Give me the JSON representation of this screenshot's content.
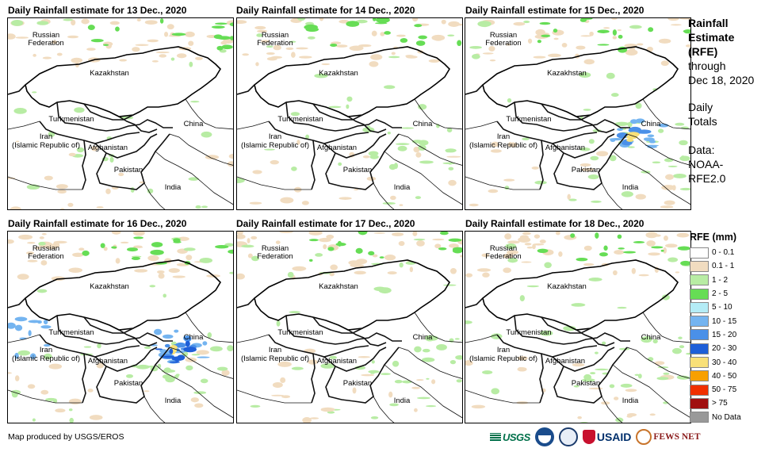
{
  "panels": [
    {
      "title": "Daily Rainfall estimate for 13 Dec., 2020",
      "rain_level": 0
    },
    {
      "title": "Daily Rainfall estimate for 14 Dec., 2020",
      "rain_level": 1
    },
    {
      "title": "Daily Rainfall estimate for 15 Dec., 2020",
      "rain_level": 2
    },
    {
      "title": "Daily Rainfall estimate for 16 Dec., 2020",
      "rain_level": 3
    },
    {
      "title": "Daily Rainfall estimate for 17 Dec., 2020",
      "rain_level": 1
    },
    {
      "title": "Daily Rainfall estimate for 18 Dec., 2020",
      "rain_level": 1
    }
  ],
  "map_labels": {
    "russia_1": "Russian",
    "russia_2": "Federation",
    "kazakhstan": "Kazakhstan",
    "turkmenistan": "Turkmenistan",
    "china": "China",
    "iran_1": "Iran",
    "iran_2": "(Islamic Republic of)",
    "afghanistan": "Afghanistan",
    "pakistan": "Pakistan",
    "india": "India"
  },
  "side_info": {
    "title_1": "Rainfall",
    "title_2": "Estimate",
    "title_3": "(RFE)",
    "through": "through",
    "date": "Dec 18, 2020",
    "totals_1": "Daily",
    "totals_2": "Totals",
    "data_1": "Data:",
    "data_2": "NOAA-",
    "data_3": "RFE2.0"
  },
  "legend": {
    "title": "RFE (mm)",
    "items": [
      {
        "label": "0 - 0.1",
        "color": "#ffffff"
      },
      {
        "label": "0.1 - 1",
        "color": "#f1dcc0"
      },
      {
        "label": "1 - 2",
        "color": "#b8eca4"
      },
      {
        "label": "2 - 5",
        "color": "#66dd55"
      },
      {
        "label": "5 - 10",
        "color": "#b4ecf6"
      },
      {
        "label": "10 - 15",
        "color": "#74b4f0"
      },
      {
        "label": "15 - 20",
        "color": "#4a90e8"
      },
      {
        "label": "20 - 30",
        "color": "#1e5fd8"
      },
      {
        "label": "30 - 40",
        "color": "#f8e078"
      },
      {
        "label": "40 - 50",
        "color": "#f8a000"
      },
      {
        "label": "50 - 75",
        "color": "#f03000"
      },
      {
        "label": "> 75",
        "color": "#a01010"
      },
      {
        "label": "No Data",
        "color": "#999999"
      }
    ]
  },
  "footer": {
    "credit": "Map produced by USGS/EROS"
  },
  "logos": {
    "usgs": "USGS",
    "usaid": "USAID",
    "fews": "FEWS NET"
  }
}
